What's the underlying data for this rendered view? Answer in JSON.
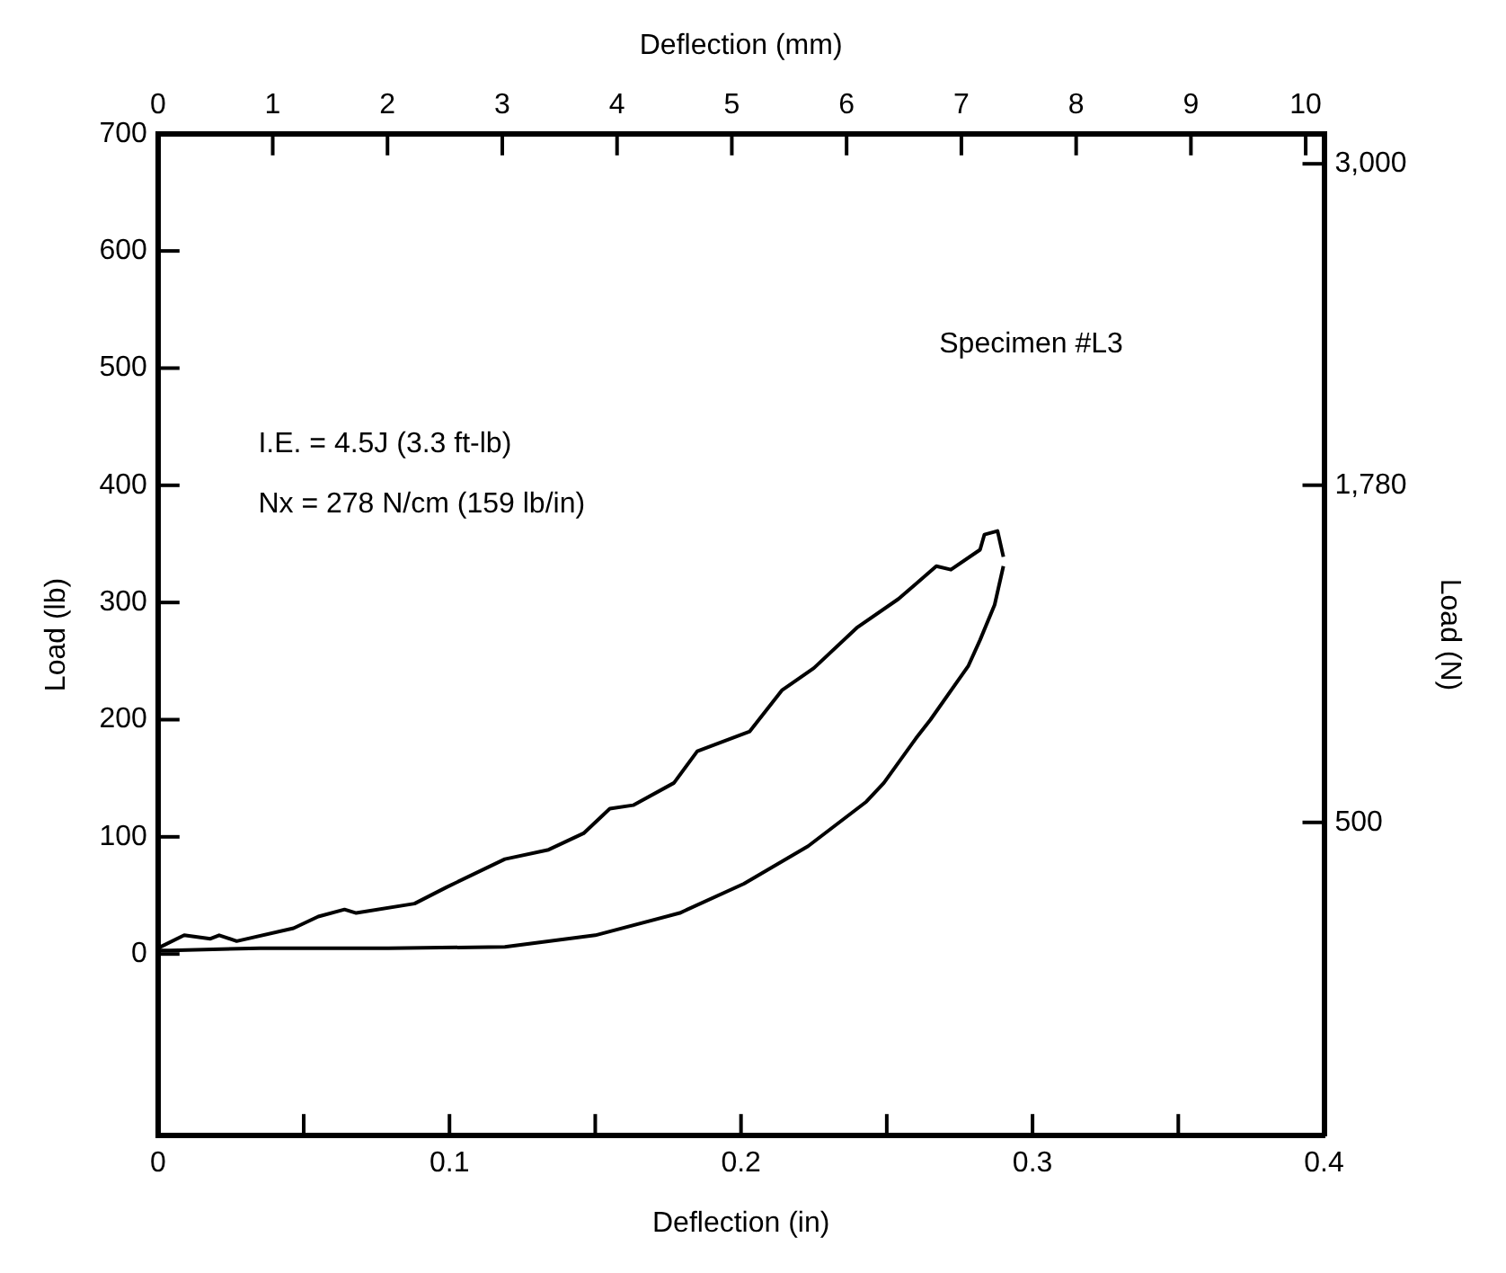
{
  "chart_data": {
    "type": "line",
    "xlabel": "Deflection (in)",
    "x2label": "Deflection (mm)",
    "ylabel": "Load (lb)",
    "y2label": "Load (N)",
    "annotations": [
      "I.E. = 4.5J (3.3 ft-lb)",
      "Nx = 278 N/cm (159 lb/in)",
      "Specimen #L3"
    ],
    "xlim": [
      0,
      0.4
    ],
    "xticks": [
      0,
      {
        "value": 0.05,
        "label": null
      },
      0.1,
      {
        "value": 0.15,
        "label": null
      },
      0.2,
      {
        "value": 0.25,
        "label": null
      },
      0.3,
      {
        "value": 0.35,
        "label": null
      },
      0.4
    ],
    "x2lim": [
      0,
      10.16
    ],
    "x2ticks": [
      0,
      1,
      2,
      3,
      4,
      5,
      6,
      7,
      8,
      9,
      10
    ],
    "ylim": [
      -155,
      700
    ],
    "yticks": [
      0,
      100,
      200,
      300,
      400,
      500,
      600,
      700
    ],
    "y2lim": [
      -689,
      3114
    ],
    "y2ticks": [
      {
        "value": 500,
        "label": "500"
      },
      {
        "value": 1780,
        "label": "1,780"
      },
      {
        "value": 3000,
        "label": "3,000"
      }
    ],
    "series": [
      {
        "color": "#000000",
        "x": [
          0,
          0.009,
          0.018,
          0.021,
          0.027,
          0.0465,
          0.055,
          0.064,
          0.068,
          0.088,
          0.099,
          0.119,
          0.134,
          0.146,
          0.155,
          0.163,
          0.177,
          0.185,
          0.203,
          0.214,
          0.225,
          0.24,
          0.254,
          0.267,
          0.272,
          0.282,
          0.2835,
          0.288,
          0.29
        ],
        "values": [
          5,
          16,
          13,
          16,
          11,
          22,
          32,
          38,
          35,
          43,
          57,
          81,
          89,
          103,
          124,
          127,
          146,
          173,
          190,
          225,
          244,
          279,
          303,
          331,
          328,
          345,
          358,
          361,
          339
        ]
      },
      {
        "color": "#000000",
        "x": [
          0,
          0.004,
          0.035,
          0.079,
          0.119,
          0.15,
          0.179,
          0.201,
          0.223,
          0.243,
          0.249,
          0.26,
          0.265,
          0.278,
          0.282,
          0.287,
          0.29
        ],
        "values": [
          3,
          3,
          5,
          5,
          6,
          16,
          35,
          60,
          92,
          130,
          146,
          184,
          200,
          246,
          268,
          298,
          331
        ]
      }
    ]
  }
}
